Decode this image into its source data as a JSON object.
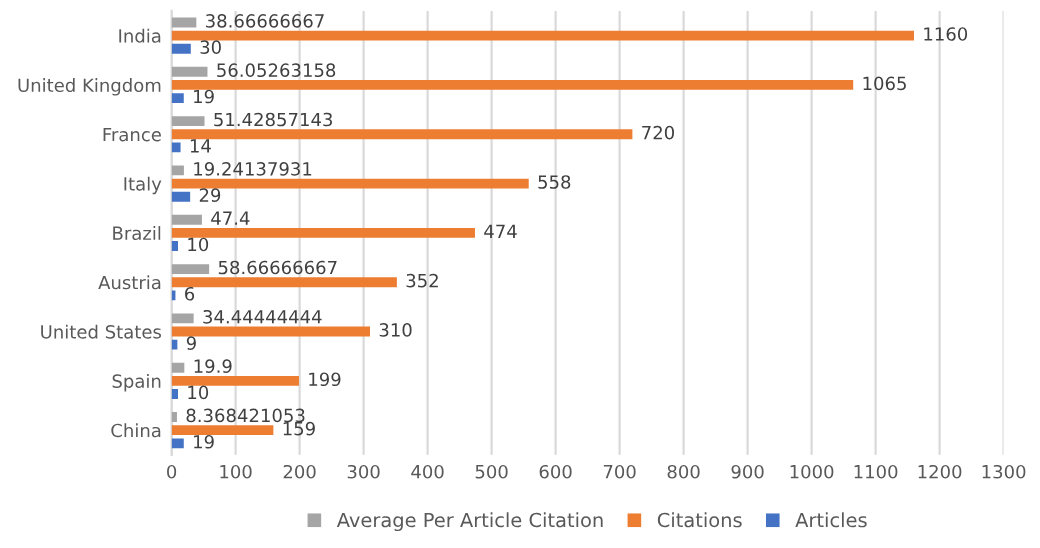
{
  "chart_data": {
    "type": "bar",
    "orientation": "horizontal",
    "categories": [
      "India",
      "United Kingdom",
      "France",
      "Italy",
      "Brazil",
      "Austria",
      "United States",
      "Spain",
      "China"
    ],
    "series": [
      {
        "name": "Average Per Article Citation",
        "color": "#a5a5a5",
        "values": [
          38.66666667,
          56.05263158,
          51.42857143,
          19.24137931,
          47.4,
          58.66666667,
          34.44444444,
          19.9,
          8.368421053
        ]
      },
      {
        "name": "Citations",
        "color": "#ed7d31",
        "values": [
          1160,
          1065,
          720,
          558,
          474,
          352,
          310,
          199,
          159
        ]
      },
      {
        "name": "Articles",
        "color": "#4472c4",
        "values": [
          30,
          19,
          14,
          29,
          10,
          6,
          9,
          10,
          19
        ]
      }
    ],
    "xlim": [
      0,
      1300
    ],
    "xticks": [
      0,
      100,
      200,
      300,
      400,
      500,
      600,
      700,
      800,
      900,
      1000,
      1100,
      1200,
      1300
    ],
    "grid": "x",
    "legend": "bottom",
    "data_labels": true
  }
}
